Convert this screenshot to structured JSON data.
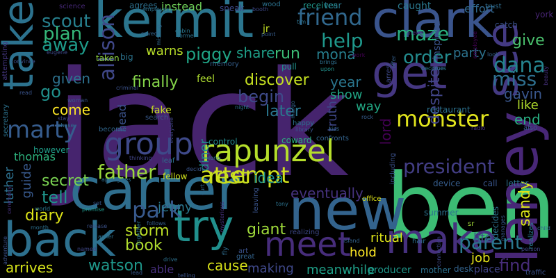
{
  "background": "#000000",
  "words": [
    {
      "text": "jack",
      "color": "#46246e"
    },
    {
      "text": "ben",
      "color": "#3cbc74"
    },
    {
      "text": "carter",
      "color": "#2f6e8e"
    },
    {
      "text": "new",
      "color": "#33638d"
    },
    {
      "text": "back",
      "color": "#2d708e"
    },
    {
      "text": "laney",
      "color": "#482777"
    },
    {
      "text": "clark",
      "color": "#3a548c"
    },
    {
      "text": "kermit",
      "color": "#2b758e"
    },
    {
      "text": "get",
      "color": "#453781"
    },
    {
      "text": "take",
      "color": "#2c728e"
    },
    {
      "text": "make",
      "color": "#46307e"
    },
    {
      "text": "try",
      "color": "#21908d"
    },
    {
      "text": "meet",
      "color": "#472d7b"
    },
    {
      "text": "rapunzel",
      "color": "#b5de2b"
    },
    {
      "text": "group",
      "color": "#3e4989"
    },
    {
      "text": "attempt",
      "color": "#d2e21b"
    },
    {
      "text": "president",
      "color": "#433e85"
    },
    {
      "text": "see",
      "color": "#443a83"
    },
    {
      "text": "father",
      "color": "#9bd93c"
    },
    {
      "text": "monster",
      "color": "#e1e41d"
    },
    {
      "text": "marty",
      "color": "#365c8d"
    },
    {
      "text": "park",
      "color": "#38598c"
    },
    {
      "text": "rest",
      "color": "#c8e020"
    },
    {
      "text": "parent",
      "color": "#2a788e"
    },
    {
      "text": "dana",
      "color": "#25848e"
    },
    {
      "text": "miss",
      "color": "#2e6f8e"
    },
    {
      "text": "allison",
      "color": "#3f4788"
    },
    {
      "text": "order",
      "color": "#238a8d"
    },
    {
      "text": "friend",
      "color": "#31688e"
    },
    {
      "text": "help",
      "color": "#1f988b"
    },
    {
      "text": "scout",
      "color": "#27808e"
    },
    {
      "text": "plan",
      "color": "#35b779"
    },
    {
      "text": "away",
      "color": "#1e9b8a"
    },
    {
      "text": "maze",
      "color": "#29af7f"
    },
    {
      "text": "give",
      "color": "#4ac16d"
    },
    {
      "text": "party",
      "color": "#2c728e"
    },
    {
      "text": "piggy",
      "color": "#20a486"
    },
    {
      "text": "warns",
      "color": "#b8de29"
    },
    {
      "text": "share",
      "color": "#1fa088"
    },
    {
      "text": "run",
      "color": "#3bbb75"
    },
    {
      "text": "mona",
      "color": "#277f8e"
    },
    {
      "text": "go",
      "color": "#21918c"
    },
    {
      "text": "given",
      "color": "#2d718e"
    },
    {
      "text": "come",
      "color": "#fde725"
    },
    {
      "text": "finally",
      "color": "#85d54a"
    },
    {
      "text": "begin",
      "color": "#3e4a89"
    },
    {
      "text": "discover",
      "color": "#c5e021"
    },
    {
      "text": "year",
      "color": "#2a768e"
    },
    {
      "text": "show",
      "color": "#21a685"
    },
    {
      "text": "way",
      "color": "#22a884"
    },
    {
      "text": "later",
      "color": "#2a768e"
    },
    {
      "text": "truth",
      "color": "#3f4788"
    },
    {
      "text": "despite",
      "color": "#414487"
    },
    {
      "text": "end",
      "color": "#28ae80"
    },
    {
      "text": "gavin",
      "color": "#39568c"
    },
    {
      "text": "like",
      "color": "#b2dd2d"
    },
    {
      "text": "diary",
      "color": "#dde318"
    },
    {
      "text": "secret",
      "color": "#7ad151"
    },
    {
      "text": "tell",
      "color": "#1f958b"
    },
    {
      "text": "thomas",
      "color": "#2db27d"
    },
    {
      "text": "luther",
      "color": "#2d708e"
    },
    {
      "text": "guide",
      "color": "#38598c"
    },
    {
      "text": "idea",
      "color": "#20928c"
    },
    {
      "text": "eventually",
      "color": "#46327e"
    },
    {
      "text": "lord",
      "color": "#440154"
    },
    {
      "text": "sandy",
      "color": "#dae319"
    },
    {
      "text": "find",
      "color": "#472c7a"
    },
    {
      "text": "storm",
      "color": "#bddf26"
    },
    {
      "text": "giant",
      "color": "#9fda3a"
    },
    {
      "text": "jenny",
      "color": "#2a788e"
    },
    {
      "text": "book",
      "color": "#b0dd2f"
    },
    {
      "text": "watson",
      "color": "#1f988b"
    },
    {
      "text": "cause",
      "color": "#d8e219"
    },
    {
      "text": "arrives",
      "color": "#d5e21a"
    },
    {
      "text": "able",
      "color": "#472f7d"
    },
    {
      "text": "making",
      "color": "#3f4889"
    },
    {
      "text": "meanwhile",
      "color": "#1fa088"
    },
    {
      "text": "hold",
      "color": "#fde725"
    },
    {
      "text": "ritual",
      "color": "#dde318"
    },
    {
      "text": "producer",
      "color": "#1f988b"
    },
    {
      "text": "job",
      "color": "#e5e419"
    },
    {
      "text": "life",
      "color": "#3b528b"
    },
    {
      "text": "mother",
      "color": "#2c718e"
    },
    {
      "text": "desk",
      "color": "#33638d"
    },
    {
      "text": "place",
      "color": "#414487"
    },
    {
      "text": "head",
      "color": "#3b528b"
    },
    {
      "text": "diner",
      "color": "#228d8d"
    },
    {
      "text": "instead",
      "color": "#6ece58"
    },
    {
      "text": "memory",
      "color": "#355f8d"
    },
    {
      "text": "feel",
      "color": "#addc30"
    },
    {
      "text": "pull",
      "color": "#20938c"
    },
    {
      "text": "receives",
      "color": "#1f978b"
    },
    {
      "text": "caught",
      "color": "#2a788e"
    },
    {
      "text": "inspired",
      "color": "#3a548c"
    },
    {
      "text": "effort",
      "color": "#31688e"
    },
    {
      "text": "york",
      "color": "#482575"
    },
    {
      "text": "catch",
      "color": "#3b528b"
    },
    {
      "text": "jr",
      "color": "#c2df23"
    },
    {
      "text": "agrees",
      "color": "#2d708e"
    },
    {
      "text": "sneak",
      "color": "#3e4a89"
    },
    {
      "text": "wood",
      "color": "#2c728e"
    },
    {
      "text": "tear",
      "color": "#2a778e"
    },
    {
      "text": "trust",
      "color": "#2f6c8e"
    },
    {
      "text": "science",
      "color": "#472878"
    },
    {
      "text": "employer",
      "color": "#2d718e"
    },
    {
      "text": "booth",
      "color": "#3e4989"
    },
    {
      "text": "saved",
      "color": "#33638d"
    },
    {
      "text": "missing",
      "color": "#31688e"
    },
    {
      "text": "cabin",
      "color": "#2a768e"
    },
    {
      "text": "former",
      "color": "#2c718e"
    },
    {
      "text": "point",
      "color": "#365d8d"
    },
    {
      "text": "never",
      "color": "#46337f"
    },
    {
      "text": "eugene",
      "color": "#3e4989"
    },
    {
      "text": "taken",
      "color": "#90d743"
    },
    {
      "text": "big",
      "color": "#2c738e"
    },
    {
      "text": "convince",
      "color": "#3b518b"
    },
    {
      "text": "secretary",
      "color": "#2c728e"
    },
    {
      "text": "attempting",
      "color": "#453781"
    },
    {
      "text": "woman",
      "color": "#39568c"
    },
    {
      "text": "read",
      "color": "#3a538b"
    },
    {
      "text": "become",
      "color": "#31678e"
    },
    {
      "text": "criminal",
      "color": "#3b528b"
    },
    {
      "text": "fake",
      "color": "#c8e020"
    },
    {
      "text": "search",
      "color": "#38598c"
    },
    {
      "text": "everyone",
      "color": "#404588"
    },
    {
      "text": "night",
      "color": "#2d718e"
    },
    {
      "text": "stay",
      "color": "#3f4788"
    },
    {
      "text": "chase",
      "color": "#2f6b8e"
    },
    {
      "text": "however",
      "color": "#1f9e89"
    },
    {
      "text": "control",
      "color": "#238a8d"
    },
    {
      "text": "coward",
      "color": "#2ab07f"
    },
    {
      "text": "confronts",
      "color": "#33638d"
    },
    {
      "text": "kiss",
      "color": "#31678e"
    },
    {
      "text": "rock",
      "color": "#365d8d"
    },
    {
      "text": "happy",
      "color": "#2c728e"
    },
    {
      "text": "library",
      "color": "#3b528b"
    },
    {
      "text": "restaurant",
      "color": "#2c718e"
    },
    {
      "text": "radio",
      "color": "#46307e"
    },
    {
      "text": "also",
      "color": "#39568c"
    },
    {
      "text": "including",
      "color": "#3b518b"
    },
    {
      "text": "clue",
      "color": "#3f4788"
    },
    {
      "text": "becomes",
      "color": "#2a788e"
    },
    {
      "text": "upon",
      "color": "#21918c"
    },
    {
      "text": "brings",
      "color": "#2e6f8e"
    },
    {
      "text": "look",
      "color": "#33638d"
    },
    {
      "text": "work",
      "color": "#440154"
    },
    {
      "text": "thinking",
      "color": "#414487"
    },
    {
      "text": "leaf",
      "color": "#2d718e"
    },
    {
      "text": "decide",
      "color": "#39568c"
    },
    {
      "text": "fellow",
      "color": "#d0e11c"
    },
    {
      "text": "apologizes",
      "color": "#2e6e8e"
    },
    {
      "text": "long",
      "color": "#2c728e"
    },
    {
      "text": "curt",
      "color": "#31688e"
    },
    {
      "text": "leaving",
      "color": "#3a548c"
    },
    {
      "text": "mysterious",
      "color": "#46337f"
    },
    {
      "text": "promise",
      "color": "#1f988b"
    },
    {
      "text": "set",
      "color": "#38598c"
    },
    {
      "text": "world",
      "color": "#2a788e"
    },
    {
      "text": "ceremony",
      "color": "#46307e"
    },
    {
      "text": "adventure",
      "color": "#3b518b"
    },
    {
      "text": "month",
      "color": "#2d708e"
    },
    {
      "text": "release",
      "color": "#3b528b"
    },
    {
      "text": "asher",
      "color": "#2c718e"
    },
    {
      "text": "named",
      "color": "#3f4788"
    },
    {
      "text": "together",
      "color": "#2a788e"
    },
    {
      "text": "follows",
      "color": "#365d8d"
    },
    {
      "text": "drive",
      "color": "#2d718e"
    },
    {
      "text": "fly",
      "color": "#2f6c8e"
    },
    {
      "text": "telling",
      "color": "#3a538b"
    },
    {
      "text": "lead",
      "color": "#38598c"
    },
    {
      "text": "art",
      "color": "#3b528b"
    },
    {
      "text": "great",
      "color": "#33638d"
    },
    {
      "text": "realizing",
      "color": "#3e4989"
    },
    {
      "text": "island",
      "color": "#33638d"
    },
    {
      "text": "office",
      "color": "#dde318"
    },
    {
      "text": "tony",
      "color": "#2c728e"
    },
    {
      "text": "device",
      "color": "#365d8d"
    },
    {
      "text": "call",
      "color": "#39568c"
    },
    {
      "text": "letter",
      "color": "#2d718e"
    },
    {
      "text": "summer",
      "color": "#2c718e"
    },
    {
      "text": "hair",
      "color": "#2c728e"
    },
    {
      "text": "sr",
      "color": "#a2da37"
    },
    {
      "text": "person",
      "color": "#414487"
    },
    {
      "text": "decides",
      "color": "#2c728e"
    },
    {
      "text": "connection",
      "color": "#3f4788"
    },
    {
      "text": "manages",
      "color": "#38598c"
    },
    {
      "text": "realizes",
      "color": "#2a788e"
    },
    {
      "text": "child",
      "color": "#31688e"
    },
    {
      "text": "traffic",
      "color": "#3b528b"
    },
    {
      "text": "arrest",
      "color": "#3e4989"
    },
    {
      "text": "offer",
      "color": "#355f8d"
    },
    {
      "text": "employee",
      "color": "#440154"
    },
    {
      "text": "beauty",
      "color": "#46307e"
    },
    {
      "text": "margo",
      "color": "#33638d"
    },
    {
      "text": "tim",
      "color": "#2c728e"
    }
  ]
}
